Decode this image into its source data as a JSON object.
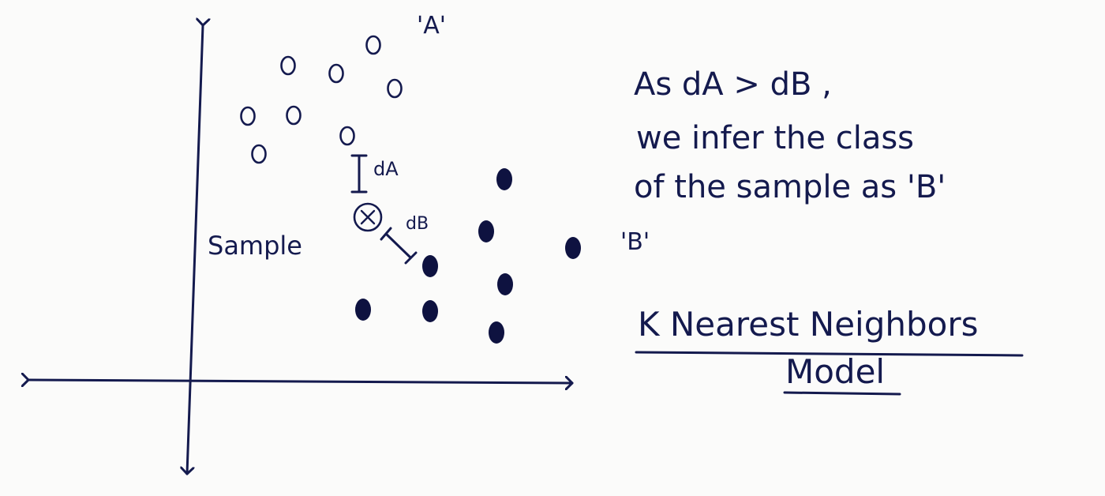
{
  "labels": {
    "class_a": "'A'",
    "class_b": "'B'",
    "sample": "Sample",
    "d_a": "dA",
    "d_b": "dB"
  },
  "explanation": {
    "line1": "As dA > dB ,",
    "line2": "we infer the class",
    "line3": "of the sample as 'B'"
  },
  "title": {
    "line1": "K Nearest Neighbors",
    "line2": "Model"
  },
  "colors": {
    "ink": "#141a4e",
    "paper": "#fbfbfa"
  }
}
